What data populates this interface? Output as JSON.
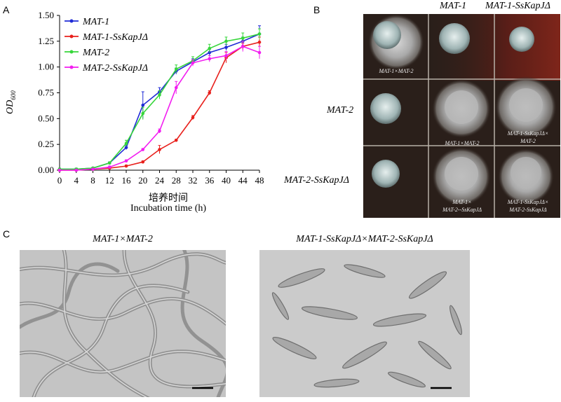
{
  "panels": {
    "a": "A",
    "b": "B",
    "c": "C"
  },
  "panelA": {
    "xlabel_cn": "培养时间",
    "xlabel_en": "Incubation time (h)",
    "ylabel_main": "OD",
    "ylabel_sub": "600"
  },
  "chart_data": {
    "type": "line",
    "x": [
      0,
      4,
      8,
      12,
      16,
      20,
      24,
      28,
      32,
      36,
      40,
      44,
      48
    ],
    "xticks": [
      "0",
      "4",
      "8",
      "12",
      "16",
      "20",
      "24",
      "28",
      "32",
      "36",
      "40",
      "44",
      "48"
    ],
    "yticks": [
      "0.00",
      "0.25",
      "0.50",
      "0.75",
      "1.00",
      "1.25",
      "1.50"
    ],
    "ylim": [
      0,
      1.5
    ],
    "xlim": [
      0,
      48
    ],
    "xlabel": "培养时间 Incubation time (h)",
    "ylabel": "OD600",
    "legend_position": "top-left",
    "series": [
      {
        "name": "MAT-1",
        "color": "#1f2bd6",
        "values": [
          0.01,
          0.01,
          0.02,
          0.07,
          0.22,
          0.63,
          0.76,
          0.96,
          1.05,
          1.14,
          1.19,
          1.25,
          1.32
        ],
        "errors": [
          0.01,
          0.01,
          0.01,
          0.01,
          0.02,
          0.13,
          0.04,
          0.03,
          0.03,
          0.03,
          0.03,
          0.04,
          0.08
        ]
      },
      {
        "name": "MAT-1-SsKapJΔ",
        "color": "#e8201c",
        "values": [
          0.0,
          0.0,
          0.01,
          0.02,
          0.04,
          0.08,
          0.2,
          0.29,
          0.51,
          0.75,
          1.09,
          1.2,
          1.24
        ],
        "errors": [
          0.0,
          0.0,
          0.0,
          0.0,
          0.01,
          0.01,
          0.04,
          0.01,
          0.02,
          0.02,
          0.05,
          0.03,
          0.05
        ]
      },
      {
        "name": "MAT-2",
        "color": "#36d63a",
        "values": [
          0.01,
          0.01,
          0.02,
          0.07,
          0.26,
          0.55,
          0.73,
          0.98,
          1.06,
          1.18,
          1.25,
          1.28,
          1.32
        ],
        "errors": [
          0.01,
          0.01,
          0.01,
          0.01,
          0.03,
          0.06,
          0.04,
          0.04,
          0.04,
          0.04,
          0.04,
          0.05,
          0.05
        ]
      },
      {
        "name": "MAT-2-SsKapJΔ",
        "color": "#f21df0",
        "values": [
          0.0,
          0.0,
          0.01,
          0.03,
          0.09,
          0.2,
          0.38,
          0.8,
          1.04,
          1.08,
          1.11,
          1.2,
          1.14
        ],
        "errors": [
          0.0,
          0.0,
          0.0,
          0.01,
          0.01,
          0.01,
          0.02,
          0.06,
          0.03,
          0.03,
          0.04,
          0.05,
          0.06
        ]
      }
    ]
  },
  "panelB": {
    "col_headers": [
      "MAT-1",
      "MAT-1-SsKapJΔ"
    ],
    "row_headers": [
      "MAT-2",
      "MAT-2-SsKapJΔ"
    ],
    "cells": [
      [
        "MAT-1×MAT-2",
        "",
        ""
      ],
      [
        "",
        "MAT-1×MAT-2",
        "MAT-1-SsKapJΔ×\nMAT-2"
      ],
      [
        "",
        "MAT-1×\nMAT-2--SsKapJΔ",
        "MAT-1-SsKapJΔ×\nMAT-2-SsKapJΔ"
      ]
    ]
  },
  "panelC": {
    "left_title": "MAT-1×MAT-2",
    "right_title": "MAT-1-SsKapJΔ×MAT-2-SsKapJΔ"
  },
  "colors": {
    "plate_bg": "#2a1f1a",
    "micro_bg": "#c8c8c8"
  }
}
